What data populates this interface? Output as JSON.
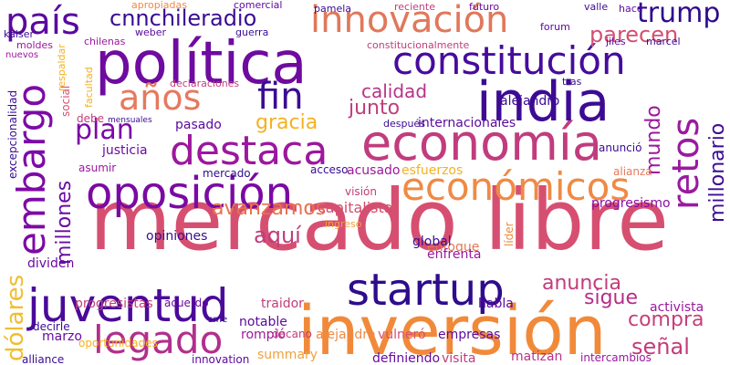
{
  "words": [
    {
      "text": "mercado libre",
      "color": "#d64f71"
    },
    {
      "text": "inversión",
      "color": "#f08a3a"
    },
    {
      "text": "política",
      "color": "#6e0ba0"
    },
    {
      "text": "economía",
      "color": "#c13c7e"
    },
    {
      "text": "india",
      "color": "#3d0b93"
    },
    {
      "text": "juventud",
      "color": "#4a0a9a"
    },
    {
      "text": "startup",
      "color": "#2e0c8c"
    },
    {
      "text": "oposición",
      "color": "#7a0aa3"
    },
    {
      "text": "destaca",
      "color": "#9c179e"
    },
    {
      "text": "económicos",
      "color": "#ef8a45"
    },
    {
      "text": "innovación",
      "color": "#e0785a"
    },
    {
      "text": "constitución",
      "color": "#470b9c"
    },
    {
      "text": "legado",
      "color": "#b22f8c"
    },
    {
      "text": "embargo",
      "color": "#7d0aa6"
    },
    {
      "text": "retos",
      "color": "#9a1aa0"
    },
    {
      "text": "país",
      "color": "#5b089f"
    },
    {
      "text": "años",
      "color": "#e6795f"
    },
    {
      "text": "fin",
      "color": "#3a0b93"
    },
    {
      "text": "plan",
      "color": "#7b0aa6"
    },
    {
      "text": "trump",
      "color": "#2f0b8c"
    },
    {
      "text": "cnnchileradio",
      "color": "#3a0b93"
    },
    {
      "text": "avanzamos",
      "color": "#e8714e"
    },
    {
      "text": "gracia",
      "color": "#f5b11e"
    },
    {
      "text": "calidad",
      "color": "#b83289"
    },
    {
      "text": "junto",
      "color": "#c03d7c"
    },
    {
      "text": "parecen",
      "color": "#d34f72"
    },
    {
      "text": "millones",
      "color": "#6a0ba1"
    },
    {
      "text": "mundo",
      "color": "#9c179e"
    },
    {
      "text": "millonario",
      "color": "#3e0b94"
    },
    {
      "text": "aquí",
      "color": "#c03d7c"
    },
    {
      "text": "anuncia",
      "color": "#c23c7c"
    },
    {
      "text": "sigue",
      "color": "#b52e8b"
    },
    {
      "text": "compra",
      "color": "#c63f7a"
    },
    {
      "text": "señal",
      "color": "#c23c7c"
    },
    {
      "text": "dólares",
      "color": "#f0be30"
    },
    {
      "text": "capitalista",
      "color": "#d14e6e"
    },
    {
      "text": "progresismo",
      "color": "#8b0aa5"
    },
    {
      "text": "alejandro",
      "color": "#3d0b93"
    },
    {
      "text": "internacionales",
      "color": "#5b089f"
    },
    {
      "text": "justicia",
      "color": "#6a0ba1"
    },
    {
      "text": "pasado",
      "color": "#5b089f"
    },
    {
      "text": "opiniones",
      "color": "#3a0b93"
    },
    {
      "text": "mercado",
      "color": "#2e0c8c"
    },
    {
      "text": "esfuerzos",
      "color": "#f5b11e"
    },
    {
      "text": "acusado",
      "color": "#9c179e"
    },
    {
      "text": "enfoque",
      "color": "#e0785a"
    },
    {
      "text": "global",
      "color": "#3a0b93"
    },
    {
      "text": "enfrenta",
      "color": "#9c179e"
    },
    {
      "text": "progresistas",
      "color": "#c63f7a"
    },
    {
      "text": "acuerdo",
      "color": "#6a0ba1"
    },
    {
      "text": "traidor",
      "color": "#c23c7c"
    },
    {
      "text": "dividen",
      "color": "#6a0ba1"
    },
    {
      "text": "habla",
      "color": "#5b089f"
    },
    {
      "text": "activista",
      "color": "#9c179e"
    },
    {
      "text": "vulneró",
      "color": "#d64f71"
    },
    {
      "text": "notable",
      "color": "#5b089f"
    },
    {
      "text": "rompió",
      "color": "#9c179e"
    },
    {
      "text": "decano",
      "color": "#c03d7c"
    },
    {
      "text": "alejandra",
      "color": "#ef8a45"
    },
    {
      "text": "empresas",
      "color": "#5b089f"
    },
    {
      "text": "summary",
      "color": "#f0a040"
    },
    {
      "text": "definiendo",
      "color": "#6a0ba1"
    },
    {
      "text": "visita",
      "color": "#c03d7c"
    },
    {
      "text": "matizan",
      "color": "#b83289"
    },
    {
      "text": "intercambios",
      "color": "#9c179e"
    },
    {
      "text": "marzo",
      "color": "#6a0ba1"
    },
    {
      "text": "alliance",
      "color": "#3a0b93"
    },
    {
      "text": "innovation",
      "color": "#5b089f"
    },
    {
      "text": "decirle",
      "color": "#3a0b93"
    },
    {
      "text": "oportunidades",
      "color": "#f5b11e"
    },
    {
      "text": "sme",
      "color": "#3a0b93"
    },
    {
      "text": "líder",
      "color": "#f08a3a"
    },
    {
      "text": "visión",
      "color": "#c03d7c"
    },
    {
      "text": "ingreso",
      "color": "#f0a040"
    },
    {
      "text": "acceso",
      "color": "#3a0b93"
    },
    {
      "text": "alianza",
      "color": "#e6795f"
    },
    {
      "text": "anunció",
      "color": "#3a0b93"
    },
    {
      "text": "después",
      "color": "#3a0b93"
    },
    {
      "text": "forum",
      "color": "#5b089f"
    },
    {
      "text": "asumir",
      "color": "#9c179e"
    },
    {
      "text": "excepcionalidad",
      "color": "#3a0b93"
    },
    {
      "text": "social",
      "color": "#d64f71"
    },
    {
      "text": "respaldar",
      "color": "#f5b11e"
    },
    {
      "text": "debe",
      "color": "#c03d7c"
    },
    {
      "text": "apropiadas",
      "color": "#ef8a45"
    },
    {
      "text": "comercial",
      "color": "#5b089f"
    },
    {
      "text": "pamela",
      "color": "#3a0b93"
    },
    {
      "text": "reciente",
      "color": "#c03d7c"
    },
    {
      "text": "futuro",
      "color": "#6a0ba1"
    },
    {
      "text": "valle",
      "color": "#3a0b93"
    },
    {
      "text": "hace",
      "color": "#5b089f"
    },
    {
      "text": "weber",
      "color": "#5b089f"
    },
    {
      "text": "guerra",
      "color": "#3a0b93"
    },
    {
      "text": "constitucionalmente",
      "color": "#c03d7c"
    },
    {
      "text": "jiles",
      "color": "#5b089f"
    },
    {
      "text": "marcel",
      "color": "#3a0b93"
    },
    {
      "text": "chilenas",
      "color": "#9c179e"
    },
    {
      "text": "moldes",
      "color": "#9c179e"
    },
    {
      "text": "kaiser",
      "color": "#3a0b93"
    },
    {
      "text": "nuevos",
      "color": "#9c179e"
    },
    {
      "text": "declaraciones",
      "color": "#c03d7c"
    },
    {
      "text": "tras",
      "color": "#3a0b93"
    },
    {
      "text": "facultad",
      "color": "#f5b11e"
    },
    {
      "text": "mensuales",
      "color": "#3a0b93"
    }
  ]
}
